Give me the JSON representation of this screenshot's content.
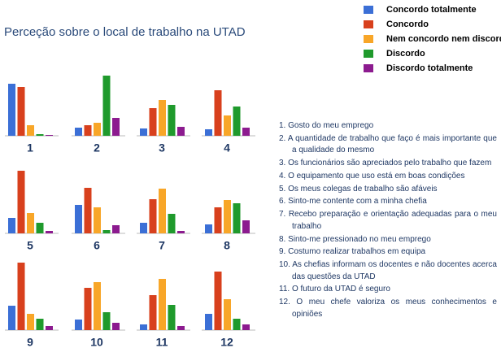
{
  "chart_data": {
    "type": "bar",
    "title": "Perceção sobre o local de trabalho na UTAD",
    "categories": [
      "1",
      "2",
      "3",
      "4",
      "5",
      "6",
      "7",
      "8",
      "9",
      "10",
      "11",
      "12"
    ],
    "ylim": [
      0,
      90
    ],
    "series": [
      {
        "name": "Concordo totalmente",
        "color": "#3b6fd6",
        "values": [
          64,
          10,
          9,
          8,
          19,
          35,
          13,
          11,
          30,
          13,
          7,
          20
        ]
      },
      {
        "name": "Concordo",
        "color": "#d8401d",
        "values": [
          60,
          13,
          34,
          56,
          77,
          56,
          42,
          32,
          83,
          52,
          43,
          72
        ]
      },
      {
        "name": "Nem concordo nem discordo",
        "color": "#f8a628",
        "values": [
          13,
          16,
          44,
          25,
          25,
          32,
          55,
          41,
          20,
          59,
          63,
          38
        ]
      },
      {
        "name": "Discordo",
        "color": "#1f9a2c",
        "values": [
          2,
          74,
          38,
          36,
          13,
          4,
          24,
          37,
          14,
          22,
          31,
          14
        ]
      },
      {
        "name": "Discordo totalmente",
        "color": "#8c1b8f",
        "values": [
          1,
          22,
          11,
          10,
          3,
          10,
          3,
          16,
          5,
          9,
          5,
          7
        ]
      }
    ],
    "statements": [
      "1. Gosto do meu emprego",
      "2. A quantidade de trabalho que faço é mais importante que a qualidade do mesmo",
      "3. Os funcionários são apreciados pelo trabalho que fazem",
      "4. O equipamento que uso está em boas condições",
      "5. Os meus colegas de trabalho são afáveis",
      "6. Sinto-me contente com a minha chefia",
      "7. Recebo preparação e orientação adequadas para o meu trabalho",
      "8. Sinto-me pressionado no meu emprego",
      "9. Costumo realizar trabalhos em equipa",
      "10. As chefias informam os docentes e não docentes acerca das questões da UTAD",
      "11. O futuro da UTAD é seguro",
      "12. O meu chefe valoriza os meus conhecimentos e opiniões"
    ]
  }
}
